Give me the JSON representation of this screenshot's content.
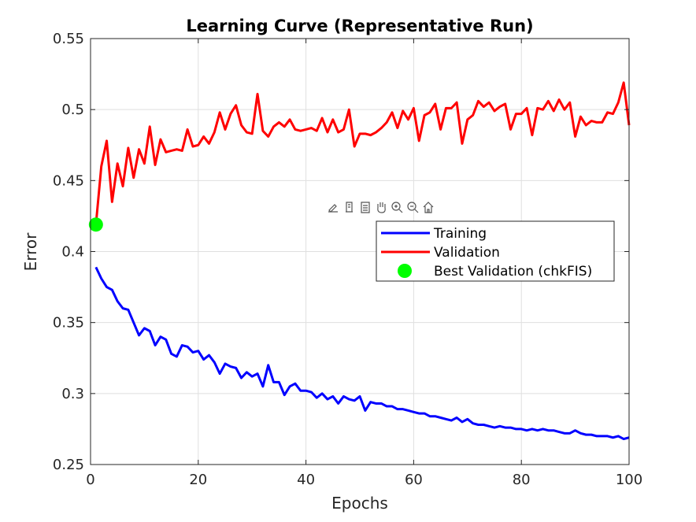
{
  "chart_data": {
    "type": "line",
    "title": "Learning Curve (Representative Run)",
    "xlabel": "Epochs",
    "ylabel": "Error",
    "xlim": [
      0,
      100
    ],
    "ylim": [
      0.25,
      0.55
    ],
    "xticks": [
      0,
      20,
      40,
      60,
      80,
      100
    ],
    "yticks": [
      0.25,
      0.3,
      0.35,
      0.4,
      0.45,
      0.5,
      0.55
    ],
    "xtick_labels": [
      "0",
      "20",
      "40",
      "60",
      "80",
      "100"
    ],
    "ytick_labels": [
      "0.25",
      "0.3",
      "0.35",
      "0.4",
      "0.45",
      "0.5",
      "0.55"
    ],
    "grid": true,
    "legend_position": "right-middle",
    "x": [
      1,
      2,
      3,
      4,
      5,
      6,
      7,
      8,
      9,
      10,
      11,
      12,
      13,
      14,
      15,
      16,
      17,
      18,
      19,
      20,
      21,
      22,
      23,
      24,
      25,
      26,
      27,
      28,
      29,
      30,
      31,
      32,
      33,
      34,
      35,
      36,
      37,
      38,
      39,
      40,
      41,
      42,
      43,
      44,
      45,
      46,
      47,
      48,
      49,
      50,
      51,
      52,
      53,
      54,
      55,
      56,
      57,
      58,
      59,
      60,
      61,
      62,
      63,
      64,
      65,
      66,
      67,
      68,
      69,
      70,
      71,
      72,
      73,
      74,
      75,
      76,
      77,
      78,
      79,
      80,
      81,
      82,
      83,
      84,
      85,
      86,
      87,
      88,
      89,
      90,
      91,
      92,
      93,
      94,
      95,
      96,
      97,
      98,
      99,
      100
    ],
    "series": [
      {
        "name": "Training",
        "color": "#0000ff",
        "values": [
          0.389,
          0.381,
          0.375,
          0.373,
          0.365,
          0.36,
          0.359,
          0.35,
          0.341,
          0.346,
          0.344,
          0.334,
          0.34,
          0.338,
          0.328,
          0.326,
          0.334,
          0.333,
          0.329,
          0.33,
          0.324,
          0.327,
          0.322,
          0.314,
          0.321,
          0.319,
          0.318,
          0.311,
          0.315,
          0.312,
          0.314,
          0.305,
          0.32,
          0.308,
          0.308,
          0.299,
          0.305,
          0.307,
          0.302,
          0.302,
          0.301,
          0.297,
          0.3,
          0.296,
          0.298,
          0.293,
          0.298,
          0.296,
          0.295,
          0.298,
          0.288,
          0.294,
          0.293,
          0.293,
          0.291,
          0.291,
          0.289,
          0.289,
          0.288,
          0.287,
          0.286,
          0.286,
          0.284,
          0.284,
          0.283,
          0.282,
          0.281,
          0.283,
          0.28,
          0.282,
          0.279,
          0.278,
          0.278,
          0.277,
          0.276,
          0.277,
          0.276,
          0.276,
          0.275,
          0.275,
          0.274,
          0.275,
          0.274,
          0.275,
          0.274,
          0.274,
          0.273,
          0.272,
          0.272,
          0.274,
          0.272,
          0.271,
          0.271,
          0.27,
          0.27,
          0.27,
          0.269,
          0.27,
          0.268,
          0.269
        ]
      },
      {
        "name": "Validation",
        "color": "#ff0000",
        "values": [
          0.419,
          0.46,
          0.478,
          0.435,
          0.462,
          0.446,
          0.473,
          0.452,
          0.472,
          0.462,
          0.488,
          0.461,
          0.479,
          0.47,
          0.471,
          0.472,
          0.471,
          0.486,
          0.474,
          0.475,
          0.481,
          0.476,
          0.484,
          0.498,
          0.486,
          0.497,
          0.503,
          0.489,
          0.484,
          0.483,
          0.511,
          0.485,
          0.481,
          0.488,
          0.491,
          0.488,
          0.493,
          0.486,
          0.485,
          0.486,
          0.487,
          0.485,
          0.494,
          0.484,
          0.493,
          0.484,
          0.486,
          0.5,
          0.474,
          0.483,
          0.483,
          0.482,
          0.484,
          0.487,
          0.491,
          0.498,
          0.487,
          0.499,
          0.493,
          0.501,
          0.478,
          0.496,
          0.498,
          0.504,
          0.486,
          0.501,
          0.501,
          0.505,
          0.476,
          0.493,
          0.496,
          0.506,
          0.502,
          0.505,
          0.499,
          0.502,
          0.504,
          0.486,
          0.497,
          0.497,
          0.501,
          0.482,
          0.501,
          0.5,
          0.506,
          0.499,
          0.507,
          0.5,
          0.505,
          0.481,
          0.495,
          0.489,
          0.492,
          0.491,
          0.491,
          0.498,
          0.497,
          0.505,
          0.519,
          0.489
        ]
      },
      {
        "name": "Best Validation (chkFIS)",
        "color": "#00ff00",
        "marker": "filled-circle",
        "points": [
          [
            1,
            0.419
          ]
        ]
      }
    ]
  },
  "toolbar": {
    "icons": [
      "brush-icon",
      "datatip-icon",
      "legend-toggle-icon",
      "pan-hand-icon",
      "zoom-in-icon",
      "zoom-out-icon",
      "home-icon"
    ]
  }
}
